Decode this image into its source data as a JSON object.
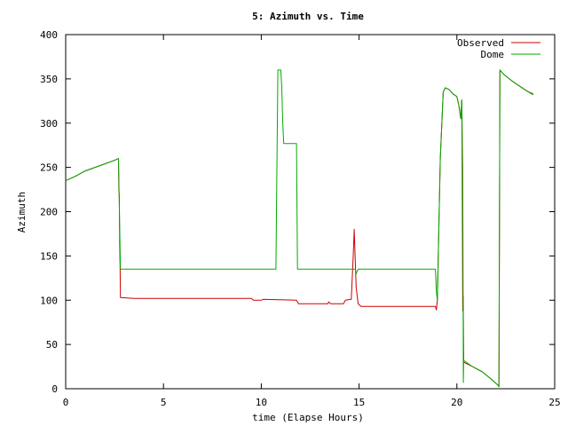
{
  "chart_data": {
    "type": "line",
    "title": "5: Azimuth vs. Time",
    "xlabel": "time (Elapse Hours)",
    "ylabel": "Azimuth",
    "xlim": [
      0,
      25
    ],
    "ylim": [
      0,
      400
    ],
    "xticks": [
      0,
      5,
      10,
      15,
      20,
      25
    ],
    "yticks": [
      0,
      50,
      100,
      150,
      200,
      250,
      300,
      350,
      400
    ],
    "grid": false,
    "legend_position": "top-right",
    "series": [
      {
        "name": "Observed",
        "color": "#cc0000",
        "points": [
          [
            0,
            235
          ],
          [
            0.5,
            240
          ],
          [
            1,
            246
          ],
          [
            1.5,
            250
          ],
          [
            2,
            254
          ],
          [
            2.5,
            258
          ],
          [
            2.7,
            260
          ],
          [
            2.72,
            225
          ],
          [
            2.74,
            218
          ],
          [
            2.76,
            165
          ],
          [
            2.78,
            140
          ],
          [
            2.8,
            103
          ],
          [
            3.5,
            102
          ],
          [
            5,
            102
          ],
          [
            7,
            102
          ],
          [
            9.5,
            102
          ],
          [
            9.6,
            100
          ],
          [
            10,
            100
          ],
          [
            10.1,
            101
          ],
          [
            11.8,
            100
          ],
          [
            11.9,
            96
          ],
          [
            13.4,
            96
          ],
          [
            13.45,
            98
          ],
          [
            13.55,
            96
          ],
          [
            14.2,
            96
          ],
          [
            14.3,
            100
          ],
          [
            14.6,
            101
          ],
          [
            14.7,
            150
          ],
          [
            14.75,
            180
          ],
          [
            14.85,
            115
          ],
          [
            14.95,
            96
          ],
          [
            15.1,
            93
          ],
          [
            17,
            93
          ],
          [
            18.9,
            93
          ],
          [
            18.95,
            89
          ],
          [
            19.0,
            100
          ],
          [
            19.15,
            260
          ],
          [
            19.3,
            335
          ],
          [
            19.4,
            340
          ],
          [
            19.6,
            338
          ],
          [
            19.8,
            333
          ],
          [
            20.0,
            330
          ],
          [
            20.1,
            320
          ],
          [
            20.2,
            305
          ],
          [
            20.25,
            326
          ],
          [
            20.27,
            250
          ],
          [
            20.3,
            88
          ],
          [
            20.32,
            105
          ],
          [
            20.35,
            30
          ],
          [
            20.8,
            25
          ],
          [
            21.3,
            19
          ],
          [
            21.8,
            10
          ],
          [
            22.1,
            4
          ],
          [
            22.15,
            3
          ],
          [
            22.2,
            360
          ],
          [
            22.4,
            355
          ],
          [
            22.8,
            348
          ],
          [
            23.2,
            342
          ],
          [
            23.6,
            336
          ],
          [
            23.9,
            333
          ]
        ]
      },
      {
        "name": "Dome",
        "color": "#00aa00",
        "points": [
          [
            0,
            235
          ],
          [
            0.5,
            240
          ],
          [
            1,
            246
          ],
          [
            1.5,
            250
          ],
          [
            2,
            254
          ],
          [
            2.5,
            258
          ],
          [
            2.7,
            260
          ],
          [
            2.8,
            135
          ],
          [
            5,
            135
          ],
          [
            8,
            135
          ],
          [
            10.75,
            135
          ],
          [
            10.85,
            360
          ],
          [
            11.0,
            360
          ],
          [
            11.05,
            340
          ],
          [
            11.1,
            300
          ],
          [
            11.15,
            277
          ],
          [
            11.8,
            277
          ],
          [
            11.85,
            135
          ],
          [
            14.8,
            135
          ],
          [
            14.85,
            130
          ],
          [
            14.95,
            135
          ],
          [
            18.9,
            135
          ],
          [
            18.95,
            110
          ],
          [
            19.0,
            100
          ],
          [
            19.15,
            260
          ],
          [
            19.3,
            335
          ],
          [
            19.4,
            340
          ],
          [
            19.6,
            338
          ],
          [
            19.8,
            333
          ],
          [
            20.0,
            330
          ],
          [
            20.1,
            320
          ],
          [
            20.2,
            305
          ],
          [
            20.25,
            326
          ],
          [
            20.3,
            250
          ],
          [
            20.33,
            7
          ],
          [
            20.35,
            32
          ],
          [
            20.8,
            25
          ],
          [
            21.3,
            19
          ],
          [
            21.8,
            10
          ],
          [
            22.1,
            4
          ],
          [
            22.15,
            2
          ],
          [
            22.2,
            360
          ],
          [
            22.4,
            355
          ],
          [
            22.8,
            348
          ],
          [
            23.2,
            342
          ],
          [
            23.6,
            336
          ],
          [
            23.9,
            332
          ]
        ]
      }
    ]
  }
}
